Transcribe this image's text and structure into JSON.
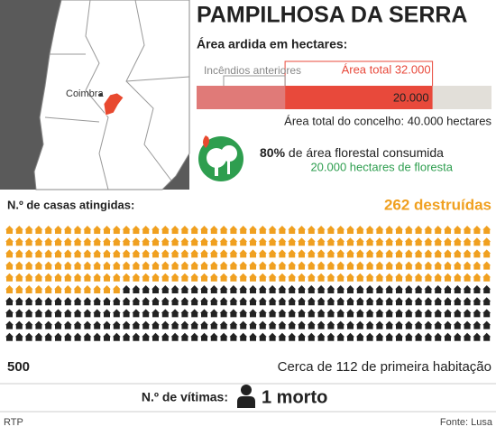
{
  "header": {
    "title": "PAMPILHOSA DA SERRA"
  },
  "map": {
    "city_label": "Coimbra"
  },
  "burned_area": {
    "heading": "Área ardida em hectares:",
    "max": 40000,
    "previous": {
      "label": "Incêndios anteriores",
      "value": 12000
    },
    "current": {
      "value": 20000,
      "value_label": "20.000"
    },
    "total": {
      "label": "Área total 32.000",
      "value": 32000
    },
    "municipality_label": "Área total do concelho: 40.000 hectares"
  },
  "forest": {
    "percent": "80%",
    "percent_text": "de área florestal consumida",
    "hectares_text": "20.000 hectares de floresta"
  },
  "houses": {
    "heading": "N.º de casas atingidas:",
    "destroyed_label": "262 destruídas",
    "destroyed": 262,
    "total": 500,
    "total_label": "500",
    "primary_label": "Cerca de 112 de primeira habitação"
  },
  "victims": {
    "heading": "N.º de vítimas:",
    "text": "1 morto"
  },
  "footer": {
    "left": "RTP",
    "right": "Fonte: Lusa"
  }
}
